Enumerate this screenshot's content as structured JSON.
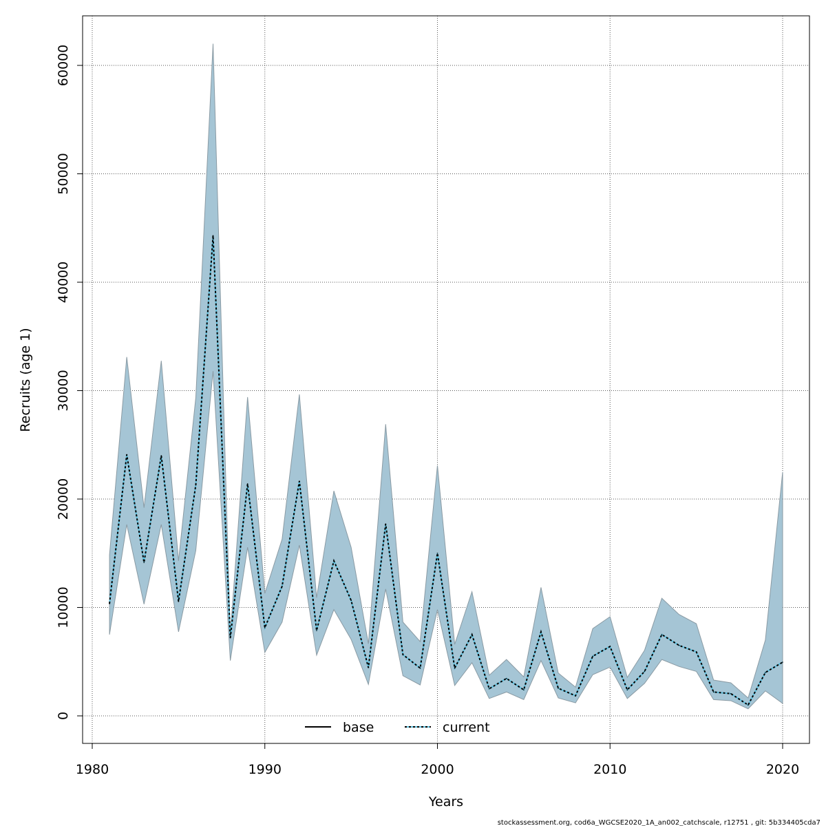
{
  "chart_data": {
    "type": "area",
    "title": "",
    "xlabel": "Years",
    "ylabel": "Recruits (age 1)",
    "xlim": [
      1980.5,
      2021.5
    ],
    "ylim": [
      -2500,
      64500
    ],
    "xticks": [
      1980,
      1990,
      2000,
      2010,
      2020
    ],
    "yticks": [
      0,
      10000,
      20000,
      30000,
      40000,
      50000,
      60000
    ],
    "grid": true,
    "legend": {
      "placement": "bottom-center",
      "entries": [
        {
          "label": "base",
          "style": "solid",
          "color": "#000000"
        },
        {
          "label": "current",
          "style": "dotted",
          "color": "#000000"
        }
      ]
    },
    "colors": {
      "band": "#a5c5d5",
      "band_border": "#8a9aa3",
      "line_under": "#5bc0de",
      "line": "#000000"
    },
    "x": [
      1981,
      1982,
      1983,
      1984,
      1985,
      1986,
      1987,
      1988,
      1989,
      1990,
      1991,
      1992,
      1993,
      1994,
      1995,
      1996,
      1997,
      1998,
      1999,
      2000,
      2001,
      2002,
      2003,
      2004,
      2005,
      2006,
      2007,
      2008,
      2009,
      2010,
      2011,
      2012,
      2013,
      2014,
      2015,
      2016,
      2017,
      2018,
      2019,
      2020
    ],
    "series": [
      {
        "name": "current",
        "values": [
          10350,
          24100,
          14150,
          24000,
          10550,
          21300,
          44300,
          7200,
          21400,
          8130,
          11950,
          21650,
          7870,
          14300,
          10650,
          4450,
          17700,
          5650,
          4400,
          15000,
          4400,
          7500,
          2500,
          3450,
          2400,
          7750,
          2550,
          1850,
          5500,
          6400,
          2400,
          4100,
          7500,
          6500,
          5900,
          2200,
          2050,
          1000,
          4000,
          4950
        ]
      },
      {
        "name": "lower",
        "values": [
          7500,
          17650,
          10300,
          17650,
          7750,
          15250,
          31800,
          5100,
          15550,
          5850,
          8650,
          15750,
          5600,
          9800,
          7050,
          2900,
          11700,
          3700,
          2850,
          9800,
          2800,
          4900,
          1600,
          2200,
          1500,
          5100,
          1650,
          1200,
          3800,
          4500,
          1600,
          3000,
          5200,
          4550,
          4100,
          1500,
          1400,
          650,
          2300,
          1150
        ]
      },
      {
        "name": "upper",
        "values": [
          14850,
          33100,
          19200,
          32750,
          14300,
          29350,
          62000,
          7500,
          29400,
          11300,
          16300,
          29650,
          10900,
          20750,
          15550,
          6650,
          26900,
          8650,
          6850,
          23100,
          6600,
          11450,
          3750,
          5200,
          3600,
          11850,
          3950,
          2650,
          8050,
          9150,
          3550,
          6050,
          10850,
          9350,
          8500,
          3300,
          3050,
          1650,
          7000,
          22500
        ]
      }
    ]
  },
  "footer": "stockassessment.org, cod6a_WGCSE2020_1A_an002_catchscale, r12751 , git: 5b334405cda7"
}
